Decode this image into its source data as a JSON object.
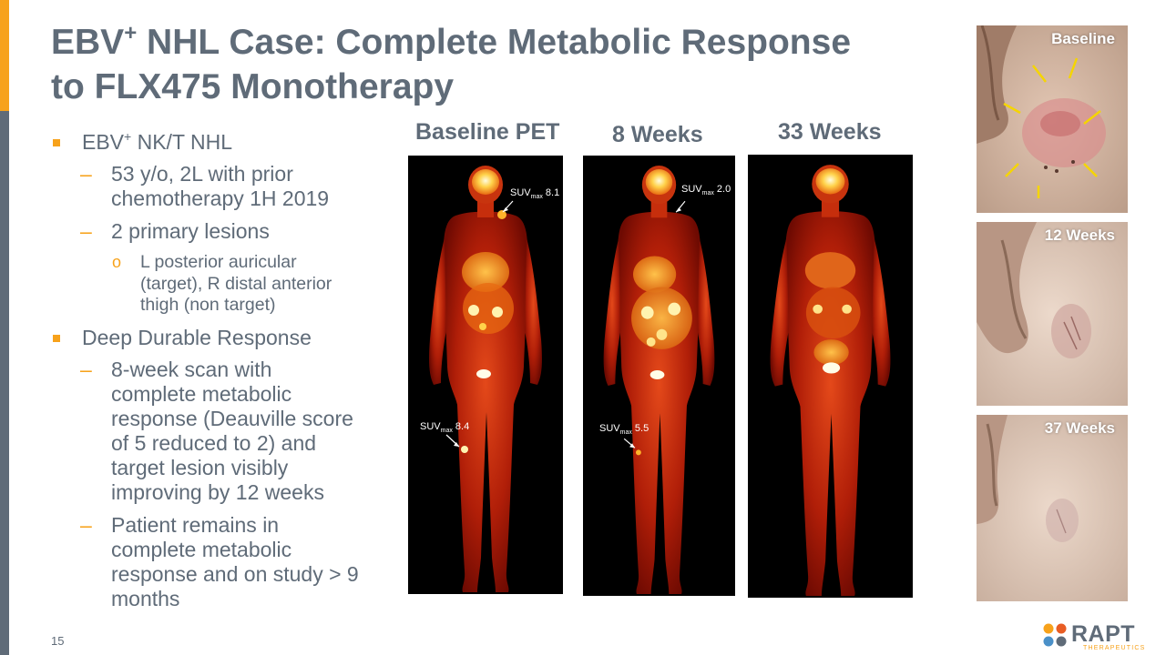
{
  "slide": {
    "title_line1_a": "EBV",
    "title_sup": "+",
    "title_line1_b": " NHL Case: Complete Metabolic Response",
    "title_line2": "to FLX475 Monotherapy",
    "page_number": "15"
  },
  "bullets": {
    "b1_a": "EBV",
    "b1_sup": "+",
    "b1_b": " NK/T NHL",
    "b1_sub1": "53 y/o, 2L with prior chemotherapy 1H 2019",
    "b1_sub2": "2 primary lesions",
    "b1_sub2_detail": "L posterior auricular (target), R distal anterior thigh (non target)",
    "b2": "Deep Durable Response",
    "b2_sub1": "8-week scan with complete metabolic response (Deauville score of 5 reduced to 2) and target lesion visibly improving by 12 weeks",
    "b2_sub2": "Patient remains in complete metabolic response and on study > 9 months",
    "dash_marker": "–",
    "circle_marker": "o"
  },
  "pet_scans": [
    {
      "header": "Baseline PET",
      "upper_label": "SUV",
      "upper_sub": "max",
      "upper_value": "8.1",
      "lower_label": "SUV",
      "lower_sub": "max",
      "lower_value": "8.4"
    },
    {
      "header": "8 Weeks",
      "upper_label": "SUV",
      "upper_sub": "max",
      "upper_value": "2.0",
      "lower_label": "SUV",
      "lower_sub": "max",
      "lower_value": "5.5"
    },
    {
      "header": "33 Weeks"
    }
  ],
  "photos": [
    {
      "label": "Baseline"
    },
    {
      "label": "12 Weeks"
    },
    {
      "label": "37 Weeks"
    }
  ],
  "logo": {
    "name": "RAPT",
    "subtitle": "THERAPEUTICS"
  },
  "colors": {
    "accent_orange": "#F7A21B",
    "text_gray": "#5F6B78",
    "lesion_arrow": "#F5D500"
  }
}
